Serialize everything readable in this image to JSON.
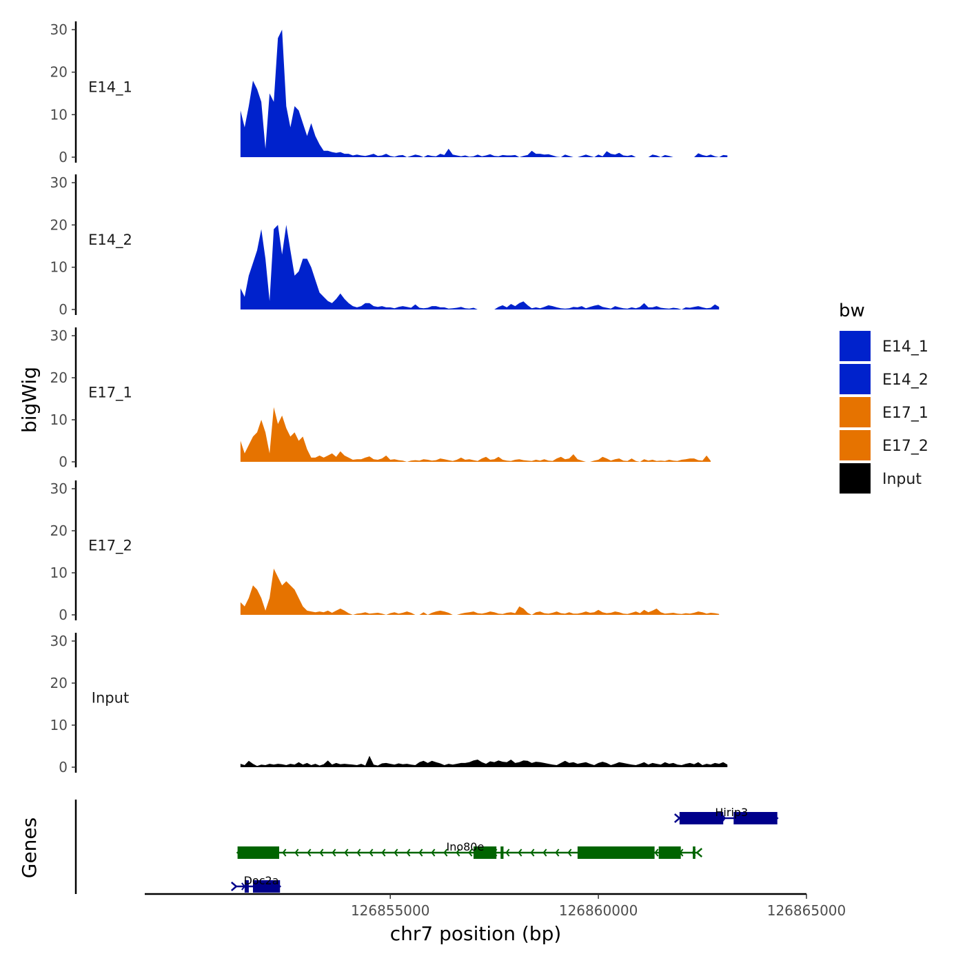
{
  "chart_data": {
    "type": "area",
    "title": "",
    "xlabel": "chr7 position (bp)",
    "ylabel": "bigWig",
    "genes_label": "Genes",
    "xlim": [
      126849100,
      126865000
    ],
    "x_ticks": [
      126855000,
      126860000,
      126865000
    ],
    "x_tick_labels": [
      "126855000",
      "126860000",
      "126865000"
    ],
    "ylim": [
      0,
      30
    ],
    "y_ticks": [
      0,
      10,
      20,
      30
    ],
    "y_tick_labels": [
      "0",
      "10",
      "20",
      "30"
    ],
    "legend": {
      "title": "bw",
      "position": "right",
      "entries": [
        {
          "name": "E14_1",
          "color": "#0022CC"
        },
        {
          "name": "E14_2",
          "color": "#0022CC"
        },
        {
          "name": "E17_1",
          "color": "#E67300"
        },
        {
          "name": "E17_2",
          "color": "#E67300"
        },
        {
          "name": "Input",
          "color": "#000000"
        }
      ]
    },
    "x_start": 126851400,
    "x_step": 100,
    "series": [
      {
        "name": "E14_1",
        "color": "#0022CC",
        "values": [
          11,
          7,
          12,
          18,
          16,
          13,
          2,
          15,
          13,
          28,
          30,
          12,
          7,
          12,
          11,
          8,
          5,
          8,
          5,
          3,
          1.5,
          1.5,
          1.2,
          1,
          1.2,
          0.8,
          0.8,
          0.4,
          0.6,
          0.4,
          0.3,
          0.5,
          0.8,
          0.3,
          0.4,
          0.8,
          0.3,
          0.1,
          0.4,
          0.5,
          0,
          0.3,
          0.6,
          0.4,
          0,
          0.5,
          0.3,
          0.2,
          0.8,
          0.5,
          2,
          0.6,
          0.4,
          0.2,
          0.4,
          0.1,
          0.2,
          0.6,
          0.2,
          0.4,
          0.7,
          0.3,
          0.2,
          0.5,
          0.4,
          0.4,
          0.5,
          0,
          0.3,
          0.5,
          1.5,
          0.8,
          0.8,
          0.6,
          0.7,
          0.4,
          0.1,
          0,
          0.6,
          0.3,
          0,
          0,
          0.3,
          0.6,
          0.3,
          0,
          0.6,
          0.2,
          1.4,
          0.8,
          0.6,
          1,
          0.4,
          0.3,
          0.5,
          0,
          0,
          0,
          0,
          0.6,
          0.4,
          0,
          0.5,
          0.3,
          0,
          0,
          0,
          0,
          0,
          0,
          0.9,
          0.5,
          0.3,
          0.6,
          0.2,
          0,
          0.5,
          0.4
        ]
      },
      {
        "name": "E14_2",
        "color": "#0022CC",
        "values": [
          5,
          3,
          8,
          11,
          14,
          19,
          12,
          2,
          19,
          20,
          13,
          20,
          14,
          8,
          9,
          12,
          12,
          10,
          7,
          4,
          3,
          2,
          1.5,
          2.5,
          3.8,
          2.5,
          1.5,
          0.8,
          0.5,
          0.8,
          1.5,
          1.5,
          0.8,
          0.6,
          0.8,
          0.5,
          0.5,
          0.3,
          0.6,
          0.8,
          0.6,
          0.4,
          1.2,
          0.4,
          0.3,
          0.4,
          0.8,
          0.8,
          0.5,
          0.5,
          0.2,
          0.3,
          0.4,
          0.6,
          0.3,
          0.2,
          0.4,
          0,
          0,
          0,
          0,
          0,
          0.6,
          1,
          0.5,
          1.3,
          0.8,
          1.5,
          1.9,
          1,
          0.3,
          0.5,
          0.3,
          0.6,
          1,
          0.8,
          0.5,
          0.3,
          0.2,
          0.3,
          0.6,
          0.5,
          0.8,
          0.3,
          0.6,
          0.9,
          1.1,
          0.6,
          0.4,
          0.2,
          0.8,
          0.5,
          0.3,
          0.2,
          0.5,
          0.3,
          0.6,
          1.5,
          0.5,
          0.5,
          0.8,
          0.4,
          0.3,
          0.2,
          0.4,
          0.3,
          0,
          0.5,
          0.4,
          0.6,
          0.8,
          0.5,
          0.3,
          0.4,
          1.2,
          0.6
        ]
      },
      {
        "name": "E17_1",
        "color": "#E67300",
        "values": [
          5,
          2,
          4,
          6,
          7,
          10,
          7,
          2,
          13,
          9,
          11,
          8,
          6,
          7,
          5,
          6,
          3,
          1,
          1,
          1.5,
          1,
          1.5,
          2,
          1.2,
          2.5,
          1.5,
          1,
          0.5,
          0.6,
          0.6,
          1,
          1.3,
          0.6,
          0.5,
          0.8,
          1.5,
          0.5,
          0.6,
          0.4,
          0.3,
          0,
          0.3,
          0.4,
          0.3,
          0.6,
          0.5,
          0.3,
          0.4,
          0.8,
          0.6,
          0.4,
          0.2,
          0.5,
          1,
          0.5,
          0.6,
          0.4,
          0.2,
          0.8,
          1.2,
          0.5,
          0.6,
          1.2,
          0.5,
          0.3,
          0.2,
          0.5,
          0.6,
          0.4,
          0.3,
          0.2,
          0.5,
          0.3,
          0.6,
          0.3,
          0.2,
          0.8,
          1.2,
          0.6,
          0.8,
          1.8,
          0.6,
          0.3,
          0,
          0,
          0.3,
          0.5,
          1.2,
          0.8,
          0.3,
          0.6,
          0.8,
          0.3,
          0.2,
          0.8,
          0.2,
          0,
          0.6,
          0.3,
          0.5,
          0.2,
          0.3,
          0.2,
          0.5,
          0.3,
          0.2,
          0.5,
          0.6,
          0.8,
          0.8,
          0.4,
          0.3,
          1.5,
          0.2
        ]
      },
      {
        "name": "E17_2",
        "color": "#E67300",
        "values": [
          3,
          2,
          4,
          7,
          6,
          4,
          1,
          4,
          11,
          9,
          7,
          8,
          7,
          6,
          4,
          2,
          1,
          0.8,
          0.6,
          0.8,
          0.6,
          1,
          0.5,
          1,
          1.5,
          1,
          0.4,
          0,
          0.3,
          0.4,
          0.6,
          0.3,
          0.4,
          0.5,
          0.3,
          0,
          0.4,
          0.6,
          0.3,
          0.5,
          0.8,
          0.5,
          0,
          0,
          0.6,
          0,
          0.5,
          0.8,
          1,
          0.8,
          0.5,
          0,
          0,
          0.3,
          0.5,
          0.6,
          0.8,
          0.4,
          0.3,
          0.5,
          0.8,
          0.6,
          0.3,
          0.2,
          0.5,
          0.6,
          0.4,
          2,
          1.5,
          0.5,
          0,
          0.6,
          0.8,
          0.4,
          0.3,
          0.5,
          0.8,
          0.4,
          0.3,
          0.6,
          0.3,
          0.3,
          0.5,
          0.8,
          0.5,
          0.6,
          1.2,
          0.6,
          0.4,
          0.5,
          0.8,
          0.6,
          0.3,
          0.2,
          0.5,
          0.8,
          0.4,
          1.2,
          0.6,
          1,
          1.5,
          0.6,
          0.3,
          0.4,
          0.5,
          0.3,
          0.2,
          0.4,
          0.3,
          0.5,
          0.8,
          0.6,
          0.3,
          0.5,
          0.4,
          0.2
        ]
      },
      {
        "name": "Input",
        "color": "#000000",
        "values": [
          0.8,
          0.5,
          1.5,
          0.8,
          0.3,
          0.6,
          0.5,
          0.8,
          0.6,
          0.8,
          0.7,
          0.5,
          0.8,
          0.6,
          1.2,
          0.6,
          1,
          0.5,
          0.8,
          0.4,
          0.7,
          1.6,
          0.6,
          1,
          0.7,
          0.8,
          0.7,
          0.6,
          0.5,
          0.8,
          0.4,
          2.7,
          0.6,
          0.4,
          0.9,
          1,
          0.8,
          0.6,
          0.9,
          0.7,
          0.8,
          0.6,
          0.5,
          1.2,
          1.5,
          1,
          1.5,
          1.2,
          0.9,
          0.5,
          0.8,
          0.6,
          0.8,
          1,
          1,
          1.2,
          1.6,
          1.8,
          1.2,
          0.8,
          1.4,
          1.2,
          1.6,
          1.3,
          1.2,
          1.8,
          1,
          1.2,
          1.6,
          1.5,
          1,
          1.3,
          1.2,
          1,
          0.8,
          0.6,
          0.5,
          1,
          1.5,
          1,
          1.2,
          0.8,
          1,
          1.2,
          0.8,
          0.5,
          1,
          1.3,
          1,
          0.5,
          0.8,
          1.2,
          1,
          0.8,
          0.6,
          0.5,
          0.8,
          1.2,
          0.6,
          1,
          0.8,
          0.6,
          1.2,
          0.8,
          1,
          0.6,
          0.5,
          0.8,
          1,
          0.7,
          1.2,
          0.5,
          0.8,
          0.6,
          1,
          0.8,
          1.2,
          0.6
        ]
      }
    ],
    "genes": [
      {
        "name": "Hirip3",
        "strand": "+",
        "color": "#00008B",
        "row": 1,
        "start": 126861950,
        "end": 126864300,
        "exons": [
          [
            126861950,
            126863000
          ],
          [
            126863250,
            126864300
          ]
        ]
      },
      {
        "name": "Ino80e",
        "strand": "-",
        "color": "#006400",
        "row": 2,
        "start": 126851330,
        "end": 126862370,
        "exons": [
          [
            126851330,
            126852330
          ],
          [
            126857000,
            126857550
          ],
          [
            126857650,
            126857720
          ],
          [
            126859500,
            126861350
          ],
          [
            126861450,
            126861980
          ],
          [
            126862270,
            126862330
          ]
        ]
      },
      {
        "name": "Doc2a",
        "strand": "+",
        "color": "#00008B",
        "row": 3,
        "start": 126851300,
        "end": 126852350,
        "exons": [
          [
            126851500,
            126851600
          ],
          [
            126851700,
            126852350
          ]
        ]
      }
    ]
  }
}
